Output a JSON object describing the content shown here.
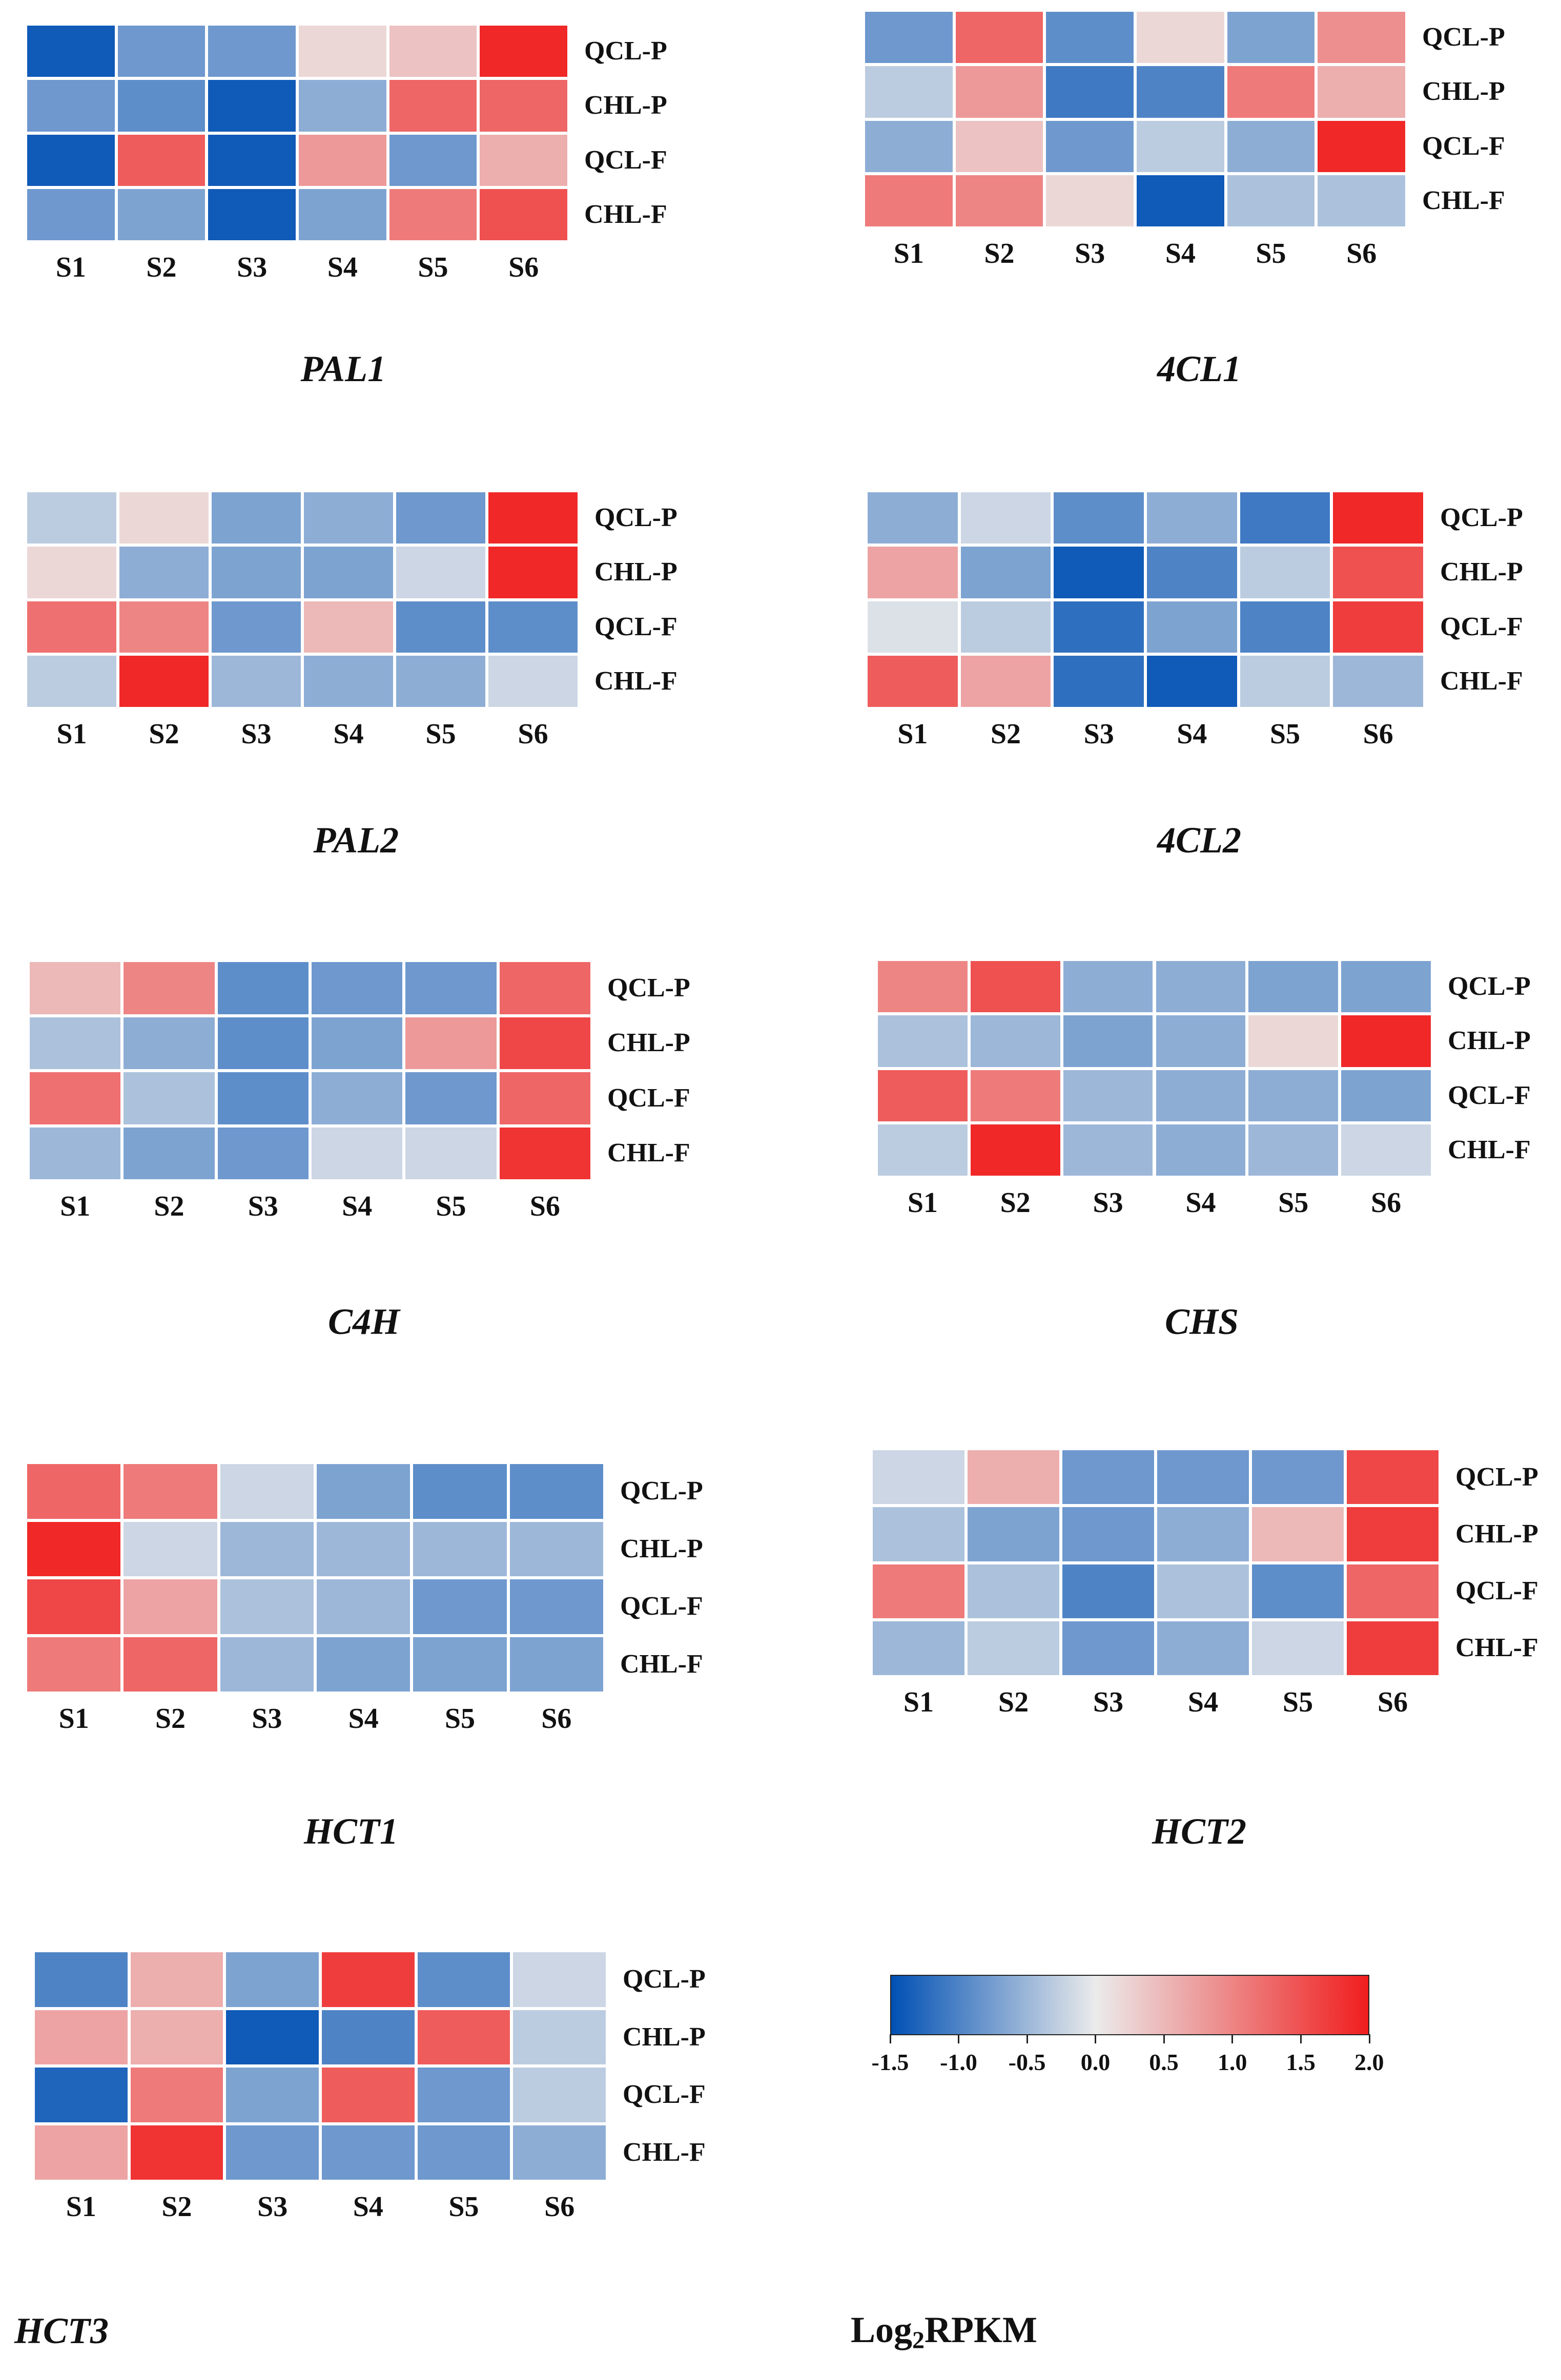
{
  "colors": {
    "low": "#0050b4",
    "mid": "#ebebeb",
    "high": "#f01e1e"
  },
  "chart_data": [
    {
      "type": "heatmap",
      "title": "PAL1",
      "rows": [
        "QCL-P",
        "CHL-P",
        "QCL-F",
        "CHL-F"
      ],
      "columns": [
        "S1",
        "S2",
        "S3",
        "S4",
        "S5",
        "S6"
      ],
      "values": [
        [
          -1.4,
          -0.8,
          -0.8,
          0.2,
          0.4,
          1.9
        ],
        [
          -0.8,
          -0.9,
          -1.4,
          -0.6,
          1.3,
          1.3
        ],
        [
          -1.4,
          1.4,
          -1.4,
          0.8,
          -0.8,
          0.6
        ],
        [
          -0.8,
          -0.7,
          -1.4,
          -0.7,
          1.1,
          1.5
        ]
      ]
    },
    {
      "type": "heatmap",
      "title": "4CL1",
      "rows": [
        "QCL-P",
        "CHL-P",
        "QCL-F",
        "CHL-F"
      ],
      "columns": [
        "S1",
        "S2",
        "S3",
        "S4",
        "S5",
        "S6"
      ],
      "values": [
        [
          -0.8,
          1.3,
          -0.9,
          0.2,
          -0.7,
          0.9
        ],
        [
          -0.3,
          0.8,
          -1.1,
          -1.0,
          1.1,
          0.6
        ],
        [
          -0.6,
          0.4,
          -0.8,
          -0.3,
          -0.6,
          1.9
        ],
        [
          1.1,
          1.0,
          0.2,
          -1.4,
          -0.4,
          -0.4
        ]
      ]
    },
    {
      "type": "heatmap",
      "title": "PAL2",
      "rows": [
        "QCL-P",
        "CHL-P",
        "QCL-F",
        "CHL-F"
      ],
      "columns": [
        "S1",
        "S2",
        "S3",
        "S4",
        "S5",
        "S6"
      ],
      "values": [
        [
          -0.3,
          0.2,
          -0.7,
          -0.6,
          -0.8,
          1.9
        ],
        [
          0.2,
          -0.6,
          -0.7,
          -0.7,
          -0.2,
          1.9
        ],
        [
          1.2,
          1.0,
          -0.8,
          0.5,
          -0.9,
          -0.9
        ],
        [
          -0.3,
          1.9,
          -0.5,
          -0.6,
          -0.6,
          -0.2
        ]
      ]
    },
    {
      "type": "heatmap",
      "title": "4CL2",
      "rows": [
        "QCL-P",
        "CHL-P",
        "QCL-F",
        "CHL-F"
      ],
      "columns": [
        "S1",
        "S2",
        "S3",
        "S4",
        "S5",
        "S6"
      ],
      "values": [
        [
          -0.6,
          -0.2,
          -0.9,
          -0.6,
          -1.1,
          1.9
        ],
        [
          0.7,
          -0.7,
          -1.4,
          -1.0,
          -0.3,
          1.5
        ],
        [
          -0.1,
          -0.3,
          -1.2,
          -0.7,
          -1.0,
          1.7
        ],
        [
          1.4,
          0.7,
          -1.2,
          -1.4,
          -0.3,
          -0.5
        ]
      ]
    },
    {
      "type": "heatmap",
      "title": "C4H",
      "rows": [
        "QCL-P",
        "CHL-P",
        "QCL-F",
        "CHL-F"
      ],
      "columns": [
        "S1",
        "S2",
        "S3",
        "S4",
        "S5",
        "S6"
      ],
      "values": [
        [
          0.5,
          1.0,
          -0.9,
          -0.8,
          -0.8,
          1.3
        ],
        [
          -0.4,
          -0.6,
          -0.9,
          -0.7,
          0.8,
          1.6
        ],
        [
          1.2,
          -0.4,
          -0.9,
          -0.6,
          -0.8,
          1.3
        ],
        [
          -0.5,
          -0.7,
          -0.8,
          -0.2,
          -0.2,
          1.8
        ]
      ]
    },
    {
      "type": "heatmap",
      "title": "CHS",
      "rows": [
        "QCL-P",
        "CHL-P",
        "QCL-F",
        "CHL-F"
      ],
      "columns": [
        "S1",
        "S2",
        "S3",
        "S4",
        "S5",
        "S6"
      ],
      "values": [
        [
          1.0,
          1.5,
          -0.6,
          -0.6,
          -0.7,
          -0.7
        ],
        [
          -0.4,
          -0.5,
          -0.7,
          -0.6,
          0.2,
          1.9
        ],
        [
          1.4,
          1.1,
          -0.5,
          -0.6,
          -0.6,
          -0.7
        ],
        [
          -0.3,
          1.9,
          -0.5,
          -0.6,
          -0.5,
          -0.2
        ]
      ]
    },
    {
      "type": "heatmap",
      "title": "HCT1",
      "rows": [
        "QCL-P",
        "CHL-P",
        "QCL-F",
        "CHL-F"
      ],
      "columns": [
        "S1",
        "S2",
        "S3",
        "S4",
        "S5",
        "S6"
      ],
      "values": [
        [
          1.3,
          1.1,
          -0.2,
          -0.7,
          -0.9,
          -0.9
        ],
        [
          1.9,
          -0.2,
          -0.5,
          -0.5,
          -0.5,
          -0.5
        ],
        [
          1.6,
          0.7,
          -0.4,
          -0.5,
          -0.8,
          -0.8
        ],
        [
          1.1,
          1.3,
          -0.5,
          -0.7,
          -0.7,
          -0.7
        ]
      ]
    },
    {
      "type": "heatmap",
      "title": "HCT2",
      "rows": [
        "QCL-P",
        "CHL-P",
        "QCL-F",
        "CHL-F"
      ],
      "columns": [
        "S1",
        "S2",
        "S3",
        "S4",
        "S5",
        "S6"
      ],
      "values": [
        [
          -0.2,
          0.6,
          -0.8,
          -0.8,
          -0.8,
          1.6
        ],
        [
          -0.4,
          -0.7,
          -0.8,
          -0.6,
          0.5,
          1.7
        ],
        [
          1.1,
          -0.4,
          -1.0,
          -0.4,
          -0.9,
          1.3
        ],
        [
          -0.5,
          -0.3,
          -0.8,
          -0.6,
          -0.2,
          1.7
        ]
      ]
    },
    {
      "type": "heatmap",
      "title": "HCT3",
      "rows": [
        "QCL-P",
        "CHL-P",
        "QCL-F",
        "CHL-F"
      ],
      "columns": [
        "S1",
        "S2",
        "S3",
        "S4",
        "S5",
        "S6"
      ],
      "values": [
        [
          -1.0,
          0.6,
          -0.7,
          1.7,
          -0.9,
          -0.2
        ],
        [
          0.7,
          0.6,
          -1.4,
          -1.0,
          1.4,
          -0.3
        ],
        [
          -1.3,
          1.1,
          -0.7,
          1.4,
          -0.8,
          -0.3
        ],
        [
          0.7,
          1.8,
          -0.8,
          -0.8,
          -0.8,
          -0.6
        ]
      ]
    }
  ],
  "legend": {
    "title_main": "Log",
    "title_sub": "2",
    "title_tail": "RPKM",
    "range": [
      -1.5,
      2.0
    ],
    "ticks": [
      "-1.5",
      "-1.0",
      "-0.5",
      "0.0",
      "0.5",
      "1.0",
      "1.5",
      "2.0"
    ]
  }
}
